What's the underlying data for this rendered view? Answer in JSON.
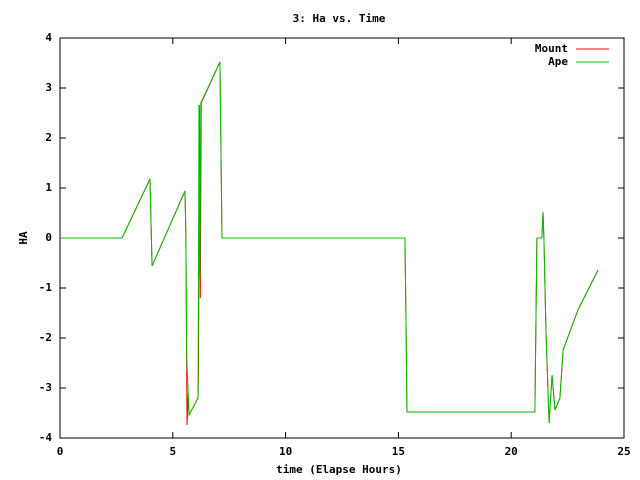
{
  "chart_data": {
    "type": "line",
    "title": "3: Ha vs. Time",
    "x_label": "time (Elapse Hours)",
    "y_label": "HA",
    "xlim": [
      0,
      25
    ],
    "xticks": [
      0,
      5,
      10,
      15,
      20,
      25
    ],
    "ylim": [
      -4,
      4
    ],
    "yticks": [
      -4,
      -3,
      -2,
      -1,
      0,
      1,
      2,
      3,
      4
    ],
    "grid": false,
    "legend_position": "top-right",
    "series": [
      {
        "name": "Mount",
        "color": "#ff0000",
        "x": [
          0,
          2.75,
          3.99,
          4.08,
          5.54,
          5.58,
          5.63,
          5.68,
          5.72,
          6.12,
          6.14,
          6.18,
          6.22,
          6.26,
          7.09,
          7.18,
          15.29,
          15.34,
          15.38,
          21.05,
          21.14,
          21.36,
          21.41,
          21.45,
          21.54,
          21.68,
          21.81,
          21.94,
          22.16,
          22.3,
          22.96,
          23.85
        ],
        "values": [
          0,
          0,
          1.18,
          -0.56,
          0.94,
          0.05,
          -3.74,
          -3.1,
          -3.54,
          -3.2,
          -2.6,
          2.66,
          -1.2,
          2.7,
          3.52,
          0,
          0,
          -1.74,
          -3.48,
          -3.48,
          0,
          0,
          0.52,
          0,
          -1.84,
          -3.7,
          -2.74,
          -3.44,
          -3.2,
          -2.24,
          -1.44,
          -0.64
        ]
      },
      {
        "name": "Ape",
        "color": "#00c000",
        "x": [
          0,
          2.75,
          3.99,
          4.08,
          5.54,
          5.58,
          5.62,
          5.72,
          6.12,
          6.16,
          6.2,
          6.24,
          7.09,
          7.18,
          15.29,
          15.34,
          15.38,
          21.05,
          21.14,
          21.36,
          21.41,
          21.45,
          21.54,
          21.68,
          21.81,
          21.94,
          22.16,
          22.3,
          22.96,
          23.85
        ],
        "values": [
          0,
          0,
          1.18,
          -0.56,
          0.94,
          0.05,
          -2.4,
          -3.54,
          -3.2,
          2.66,
          -0.8,
          2.7,
          3.52,
          0,
          0,
          -1.74,
          -3.48,
          -3.48,
          0,
          0,
          0.52,
          0,
          -1.84,
          -3.7,
          -2.74,
          -3.44,
          -3.2,
          -2.24,
          -1.44,
          -0.64
        ]
      }
    ]
  }
}
